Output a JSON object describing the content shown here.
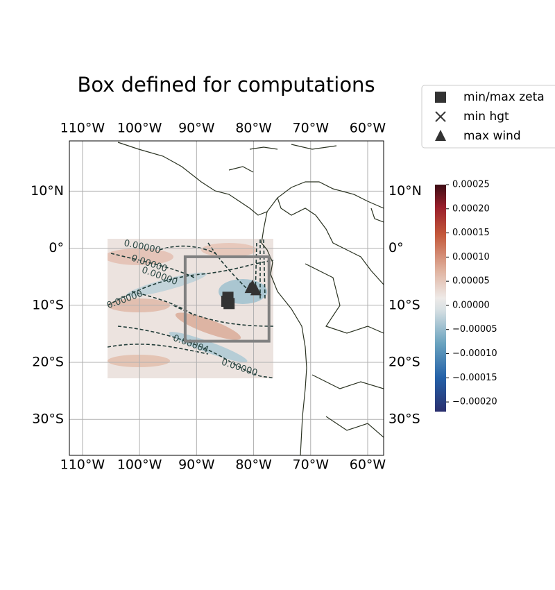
{
  "chart_data": {
    "type": "map",
    "title": "Box defined for computations",
    "xlim": [
      -112.3,
      -57.2
    ],
    "ylim": [
      -36.3,
      18.8
    ],
    "xticks": [
      {
        "value": -110,
        "label": "110°W"
      },
      {
        "value": -100,
        "label": "100°W"
      },
      {
        "value": -90,
        "label": "90°W"
      },
      {
        "value": -80,
        "label": "80°W"
      },
      {
        "value": -70,
        "label": "70°W"
      },
      {
        "value": -60,
        "label": "60°W"
      }
    ],
    "yticks": [
      {
        "value": 10,
        "label": "10°N"
      },
      {
        "value": 0,
        "label": "0°"
      },
      {
        "value": -10,
        "label": "10°S"
      },
      {
        "value": -20,
        "label": "20°S"
      },
      {
        "value": -30,
        "label": "30°S"
      }
    ],
    "grid": true,
    "field_extent": {
      "lon": [
        -105.6,
        -76.5
      ],
      "lat": [
        -22.9,
        1.6
      ]
    },
    "box": {
      "lon": [
        -92,
        -77.3
      ],
      "lat": [
        -16.3,
        -1.5
      ],
      "color": "#808080"
    },
    "markers": [
      {
        "name": "min/max zeta",
        "symbol": "square",
        "color": "#333333",
        "lon": [
          -84.5,
          -84.7,
          -84.3
        ],
        "lat": [
          -8.6,
          -9.3,
          -9.7
        ]
      },
      {
        "name": "min hgt",
        "symbol": "x",
        "color": "#333333",
        "lon": [
          -84.5
        ],
        "lat": [
          -9.2
        ]
      },
      {
        "name": "max wind",
        "symbol": "triangle",
        "color": "#333333",
        "lon": [
          -80.2,
          -79.6,
          -80.6
        ],
        "lat": [
          -6.6,
          -7.4,
          -7.0
        ]
      }
    ],
    "contour_labels": [
      "0.00000",
      "0.00000",
      "0.00000",
      "0.00000",
      "0.00004",
      "0.00000"
    ],
    "colorbar": {
      "clim": [
        -0.00022,
        0.00025
      ],
      "ticks": [
        {
          "value": 0.00025,
          "label": "0.00025"
        },
        {
          "value": 0.0002,
          "label": "0.00020"
        },
        {
          "value": 0.00015,
          "label": "0.00015"
        },
        {
          "value": 0.0001,
          "label": "0.00010"
        },
        {
          "value": 5e-05,
          "label": "0.00005"
        },
        {
          "value": 0,
          "label": "0.00000"
        },
        {
          "value": -5e-05,
          "label": "−0.00005"
        },
        {
          "value": -0.0001,
          "label": "−0.00010"
        },
        {
          "value": -0.00015,
          "label": "−0.00015"
        },
        {
          "value": -0.0002,
          "label": "−0.00020"
        }
      ]
    }
  }
}
